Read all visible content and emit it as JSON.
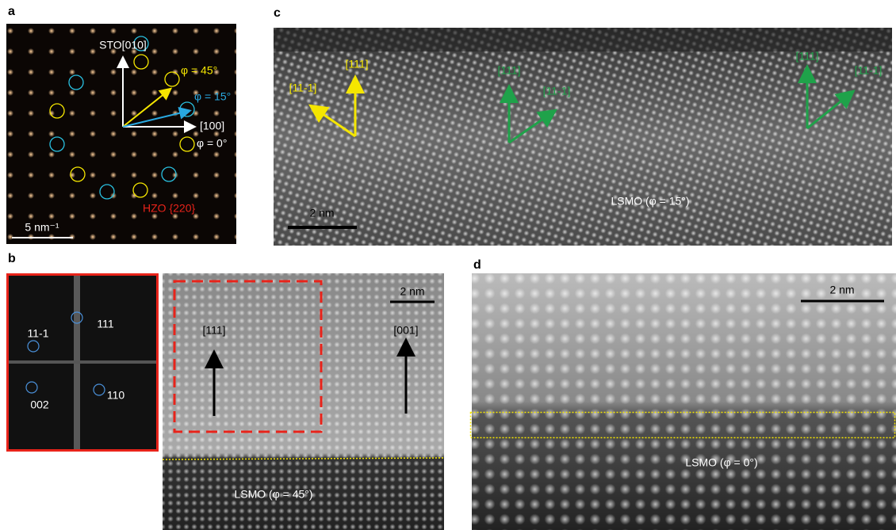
{
  "panel_a": {
    "label": "a",
    "labels": [
      "STO[010]",
      "φ = 45°",
      "φ = 15°",
      "[100]",
      "φ = 0°",
      "HZO {220}"
    ],
    "scale_bar": "5 nm⁻¹"
  },
  "panel_b": {
    "label": "b",
    "fft_labels": [
      "11-1",
      "111",
      "002",
      "110"
    ],
    "labels": [
      "[111]",
      "[001]"
    ],
    "scale_bar": "2 nm",
    "caption": "LSMO (φ = 45°)"
  },
  "panel_c": {
    "label": "c",
    "labels": [
      "[11-1]",
      "[111]",
      "[111]",
      "[11-1]",
      "[111]",
      "[11-1]"
    ],
    "scale_bar": "2 nm",
    "caption": "LSMO (φ = 15°)"
  },
  "panel_d": {
    "label": "d",
    "scale_bar": "2 nm",
    "caption": "LSMO (φ = 0°)"
  }
}
